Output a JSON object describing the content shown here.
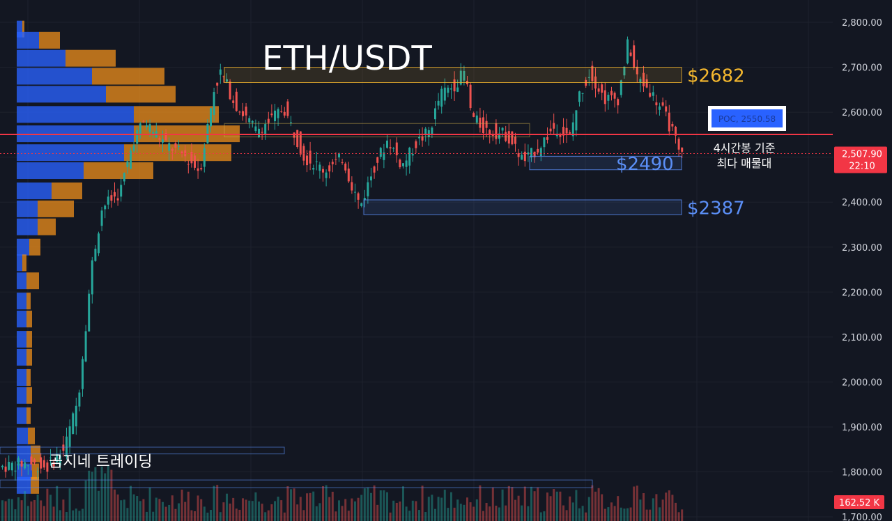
{
  "chart_data": {
    "type": "candlestick",
    "title": "ETH/USDT",
    "watermark": "곰지네 트레이딩",
    "yaxis": {
      "ticks": [
        "2,800.00",
        "2,700.00",
        "2,600.00",
        "2,500.00",
        "2,400.00",
        "2,300.00",
        "2,200.00",
        "2,100.00",
        "2,000.00",
        "1,900.00",
        "1,800.00",
        "1,700.00"
      ],
      "tick_values": [
        2800,
        2700,
        2600,
        2500,
        2400,
        2300,
        2200,
        2100,
        2000,
        1900,
        1800,
        1700
      ],
      "ylim": [
        1700,
        2800
      ]
    },
    "last_price": {
      "value": "2,507.90",
      "countdown": "22:10",
      "numeric": 2507.9
    },
    "volume_badge": "162.52 K",
    "poc": {
      "label": "POC, 2550.58",
      "value": 2550.58,
      "color": "#f23645"
    },
    "zones": [
      {
        "label": "$2682",
        "low": 2666,
        "high": 2700,
        "color": "#f5b82e"
      },
      {
        "label": "$2490",
        "low": 2472,
        "high": 2502,
        "color": "#5b8ff7"
      },
      {
        "label": "$2387",
        "low": 2372,
        "high": 2405,
        "color": "#5b8ff7"
      }
    ],
    "note_lines": [
      "4시간봉 기준",
      "최다 매물대"
    ],
    "colors": {
      "up": "#26a69a",
      "down": "#ef5350",
      "vp_blue": "#2962ff",
      "vp_orange": "#f7931a"
    }
  }
}
